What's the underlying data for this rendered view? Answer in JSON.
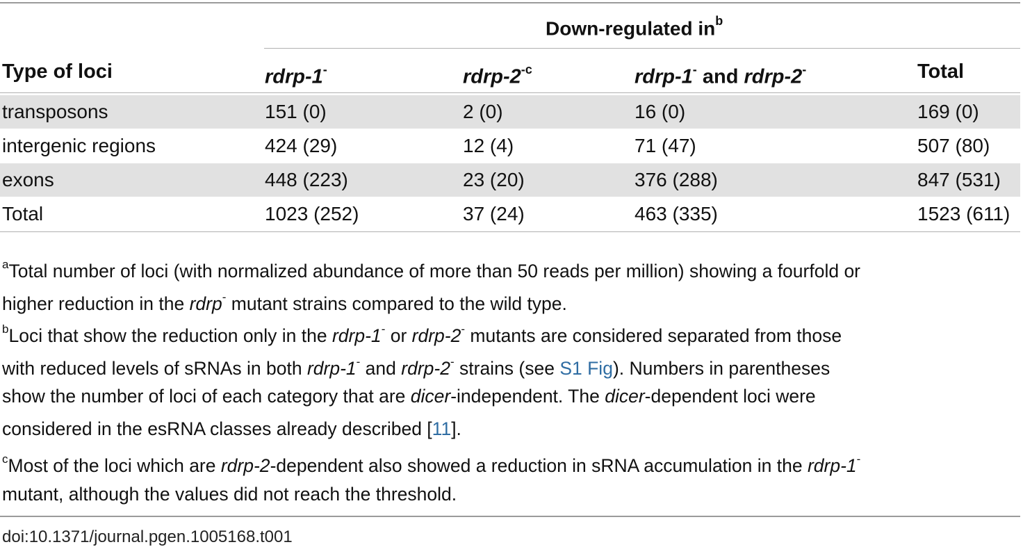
{
  "table": {
    "spanner": {
      "text": "Down-regulated in",
      "sup": "b"
    },
    "headers": [
      {
        "pre": "",
        "italic": "",
        "post": "Type of loci",
        "sup": ""
      },
      {
        "pre": "",
        "italic": "rdrp-1",
        "post": "",
        "sup": "-"
      },
      {
        "pre": "",
        "italic": "rdrp-2",
        "post": "",
        "sup": "-c"
      },
      {
        "italic1": "rdrp-1",
        "sup1": "-",
        "mid": " and ",
        "italic2": "rdrp-2",
        "sup2": "-"
      },
      {
        "pre": "",
        "italic": "",
        "post": "Total",
        "sup": ""
      }
    ],
    "rows": [
      [
        "transposons",
        "151 (0)",
        "2 (0)",
        "16 (0)",
        "169 (0)"
      ],
      [
        "intergenic regions",
        "424 (29)",
        "12 (4)",
        "71 (47)",
        "507 (80)"
      ],
      [
        "exons",
        "448 (223)",
        "23 (20)",
        "376 (288)",
        "847 (531)"
      ],
      [
        "Total",
        "1023 (252)",
        "37 (24)",
        "463 (335)",
        "1523 (611)"
      ]
    ]
  },
  "footnotes": {
    "a": {
      "mark": "a",
      "l1": "Total number of loci (with normalized abundance of more than 50 reads per million) showing a fourfold or",
      "l2_pre": "higher reduction in the ",
      "l2_it": "rdrp",
      "l2_sup": "-",
      "l2_post": " mutant strains compared to the wild type."
    },
    "b": {
      "mark": "b",
      "l1_pre": "Loci that show the reduction only in the ",
      "l1_it1": "rdrp-1",
      "l1_sup1": "-",
      "l1_mid": " or ",
      "l1_it2": "rdrp-2",
      "l1_sup2": "-",
      "l1_post": " mutants are considered separated from those",
      "l2_pre": "with reduced levels of sRNAs in both ",
      "l2_it1": "rdrp-1",
      "l2_sup1": "-",
      "l2_mid": " and ",
      "l2_it2": "rdrp-2",
      "l2_sup2": "-",
      "l2_post1": " strains (see ",
      "l2_link": "S1 Fig",
      "l2_post2": "). Numbers in parentheses",
      "l3_pre": "show the number of loci of each category that are ",
      "l3_it1": "dicer",
      "l3_mid": "-independent. The ",
      "l3_it2": "dicer",
      "l3_post": "-dependent loci were",
      "l4_pre": "considered in the esRNA classes already described [",
      "l4_link": "11",
      "l4_post": "]."
    },
    "c": {
      "mark": "c",
      "l1_pre": "Most of the loci which are ",
      "l1_it1": "rdrp-2",
      "l1_mid": "-dependent also showed a reduction in sRNA accumulation in the ",
      "l1_it2": "rdrp-1",
      "l1_sup": "-",
      "l2": "mutant, although the values did not reach the threshold."
    }
  },
  "doi": "doi:10.1371/journal.pgen.1005168.t001"
}
